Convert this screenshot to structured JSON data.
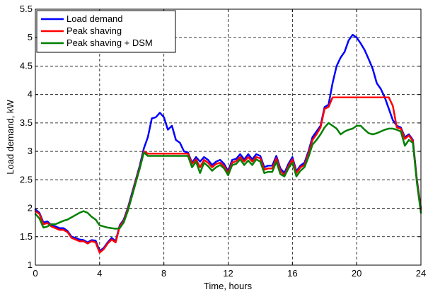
{
  "chart_data": {
    "type": "line",
    "xlabel": "Time, hours",
    "ylabel": "Load demand, kW",
    "xlim": [
      0,
      24
    ],
    "ylim": [
      1,
      5.5
    ],
    "xticks": [
      0,
      4,
      8,
      12,
      16,
      20,
      24
    ],
    "yticks": [
      1,
      1.5,
      2,
      2.5,
      3,
      3.5,
      4,
      4.5,
      5,
      5.5
    ],
    "grid": true,
    "legend_position": "top-left",
    "series": [
      {
        "name": "Load demand",
        "color": "#0000ff",
        "x": [
          0,
          0.25,
          0.5,
          0.75,
          1,
          1.25,
          1.5,
          1.75,
          2,
          2.25,
          2.5,
          2.75,
          3,
          3.25,
          3.5,
          3.75,
          4,
          4.25,
          4.5,
          4.75,
          5,
          5.25,
          5.5,
          5.75,
          6,
          6.25,
          6.5,
          6.75,
          7,
          7.25,
          7.5,
          7.75,
          8,
          8.25,
          8.5,
          8.75,
          9,
          9.25,
          9.5,
          9.75,
          10,
          10.25,
          10.5,
          10.75,
          11,
          11.25,
          11.5,
          11.75,
          12,
          12.25,
          12.5,
          12.75,
          13,
          13.25,
          13.5,
          13.75,
          14,
          14.25,
          14.5,
          14.75,
          15,
          15.25,
          15.5,
          15.75,
          16,
          16.25,
          16.5,
          16.75,
          17,
          17.25,
          17.5,
          17.75,
          18,
          18.25,
          18.5,
          18.75,
          19,
          19.25,
          19.5,
          19.75,
          20,
          20.25,
          20.5,
          20.75,
          21,
          21.25,
          21.5,
          21.75,
          22,
          22.25,
          22.5,
          22.75,
          23,
          23.25,
          23.5,
          23.75,
          24
        ],
        "y": [
          1.98,
          1.92,
          1.75,
          1.77,
          1.7,
          1.68,
          1.65,
          1.65,
          1.6,
          1.5,
          1.48,
          1.45,
          1.44,
          1.4,
          1.44,
          1.43,
          1.25,
          1.3,
          1.4,
          1.48,
          1.42,
          1.7,
          1.8,
          2.0,
          2.25,
          2.5,
          2.75,
          3.05,
          3.25,
          3.58,
          3.6,
          3.68,
          3.6,
          3.38,
          3.45,
          3.2,
          3.15,
          3.0,
          2.98,
          2.8,
          2.9,
          2.82,
          2.9,
          2.85,
          2.76,
          2.82,
          2.85,
          2.78,
          2.65,
          2.85,
          2.87,
          2.95,
          2.86,
          2.95,
          2.86,
          2.95,
          2.92,
          2.72,
          2.75,
          2.75,
          2.92,
          2.7,
          2.62,
          2.78,
          2.9,
          2.65,
          2.75,
          2.8,
          3.0,
          3.25,
          3.35,
          3.45,
          3.78,
          3.82,
          4.2,
          4.5,
          4.65,
          4.75,
          4.95,
          5.05,
          5.0,
          4.9,
          4.78,
          4.62,
          4.45,
          4.2,
          4.1,
          3.95,
          3.75,
          3.55,
          3.45,
          3.42,
          3.25,
          3.3,
          3.2,
          2.5,
          2.0
        ]
      },
      {
        "name": "Peak shaving",
        "color": "#ff0000",
        "x": [
          0,
          0.25,
          0.5,
          0.75,
          1,
          1.25,
          1.5,
          1.75,
          2,
          2.25,
          2.5,
          2.75,
          3,
          3.25,
          3.5,
          3.75,
          4,
          4.25,
          4.5,
          4.75,
          5,
          5.25,
          5.5,
          5.75,
          6,
          6.25,
          6.5,
          6.75,
          7,
          7.25,
          7.5,
          7.75,
          8,
          8.25,
          8.5,
          8.75,
          9,
          9.25,
          9.5,
          9.75,
          10,
          10.25,
          10.5,
          10.75,
          11,
          11.25,
          11.5,
          11.75,
          12,
          12.25,
          12.5,
          12.75,
          13,
          13.25,
          13.5,
          13.75,
          14,
          14.25,
          14.5,
          14.75,
          15,
          15.25,
          15.5,
          15.75,
          16,
          16.25,
          16.5,
          16.75,
          17,
          17.25,
          17.5,
          17.75,
          18,
          18.25,
          18.5,
          18.75,
          19,
          19.25,
          19.5,
          19.75,
          20,
          20.25,
          20.5,
          20.75,
          21,
          21.25,
          21.5,
          21.75,
          22,
          22.25,
          22.5,
          22.75,
          23,
          23.25,
          23.5,
          23.75,
          24
        ],
        "y": [
          1.95,
          1.9,
          1.72,
          1.74,
          1.68,
          1.65,
          1.62,
          1.62,
          1.58,
          1.48,
          1.45,
          1.42,
          1.42,
          1.38,
          1.42,
          1.4,
          1.22,
          1.28,
          1.38,
          1.45,
          1.4,
          1.68,
          1.78,
          1.98,
          2.22,
          2.48,
          2.72,
          3.0,
          2.96,
          2.96,
          2.96,
          2.96,
          2.96,
          2.96,
          2.96,
          2.96,
          2.96,
          2.96,
          2.96,
          2.78,
          2.86,
          2.72,
          2.85,
          2.8,
          2.72,
          2.78,
          2.8,
          2.74,
          2.62,
          2.8,
          2.83,
          2.9,
          2.82,
          2.9,
          2.82,
          2.9,
          2.88,
          2.68,
          2.7,
          2.7,
          2.88,
          2.66,
          2.58,
          2.74,
          2.86,
          2.62,
          2.72,
          2.76,
          2.96,
          3.2,
          3.3,
          3.42,
          3.75,
          3.78,
          3.95,
          3.95,
          3.95,
          3.95,
          3.95,
          3.95,
          3.95,
          3.95,
          3.95,
          3.95,
          3.95,
          3.95,
          3.95,
          3.95,
          3.95,
          3.8,
          3.42,
          3.4,
          3.22,
          3.28,
          3.18,
          2.48,
          1.98
        ]
      },
      {
        "name": "Peak shaving + DSM",
        "color": "#008000",
        "x": [
          0,
          0.25,
          0.5,
          0.75,
          1,
          1.25,
          1.5,
          1.75,
          2,
          2.25,
          2.5,
          2.75,
          3,
          3.25,
          3.5,
          3.75,
          4,
          4.25,
          4.5,
          4.75,
          5,
          5.25,
          5.5,
          5.75,
          6,
          6.25,
          6.5,
          6.75,
          7,
          7.25,
          7.5,
          7.75,
          8,
          8.25,
          8.5,
          8.75,
          9,
          9.25,
          9.5,
          9.75,
          10,
          10.25,
          10.5,
          10.75,
          11,
          11.25,
          11.5,
          11.75,
          12,
          12.25,
          12.5,
          12.75,
          13,
          13.25,
          13.5,
          13.75,
          14,
          14.25,
          14.5,
          14.75,
          15,
          15.25,
          15.5,
          15.75,
          16,
          16.25,
          16.5,
          16.75,
          17,
          17.25,
          17.5,
          17.75,
          18,
          18.25,
          18.5,
          18.75,
          19,
          19.25,
          19.5,
          19.75,
          20,
          20.25,
          20.5,
          20.75,
          21,
          21.25,
          21.5,
          21.75,
          22,
          22.25,
          22.5,
          22.75,
          23,
          23.25,
          23.5,
          23.75,
          24
        ],
        "y": [
          1.9,
          1.82,
          1.66,
          1.68,
          1.72,
          1.72,
          1.75,
          1.78,
          1.8,
          1.84,
          1.88,
          1.92,
          1.95,
          1.92,
          1.85,
          1.8,
          1.7,
          1.68,
          1.66,
          1.65,
          1.64,
          1.65,
          1.75,
          1.95,
          2.2,
          2.45,
          2.7,
          2.98,
          2.92,
          2.92,
          2.92,
          2.92,
          2.92,
          2.92,
          2.92,
          2.92,
          2.92,
          2.92,
          2.92,
          2.72,
          2.82,
          2.62,
          2.8,
          2.74,
          2.66,
          2.72,
          2.76,
          2.7,
          2.58,
          2.76,
          2.78,
          2.86,
          2.76,
          2.84,
          2.76,
          2.86,
          2.82,
          2.62,
          2.64,
          2.64,
          2.82,
          2.6,
          2.56,
          2.7,
          2.8,
          2.56,
          2.66,
          2.72,
          2.9,
          3.12,
          3.2,
          3.3,
          3.42,
          3.5,
          3.45,
          3.4,
          3.3,
          3.35,
          3.38,
          3.4,
          3.45,
          3.45,
          3.38,
          3.32,
          3.3,
          3.32,
          3.35,
          3.38,
          3.4,
          3.4,
          3.38,
          3.35,
          3.1,
          3.2,
          3.15,
          2.45,
          1.92
        ]
      }
    ]
  }
}
